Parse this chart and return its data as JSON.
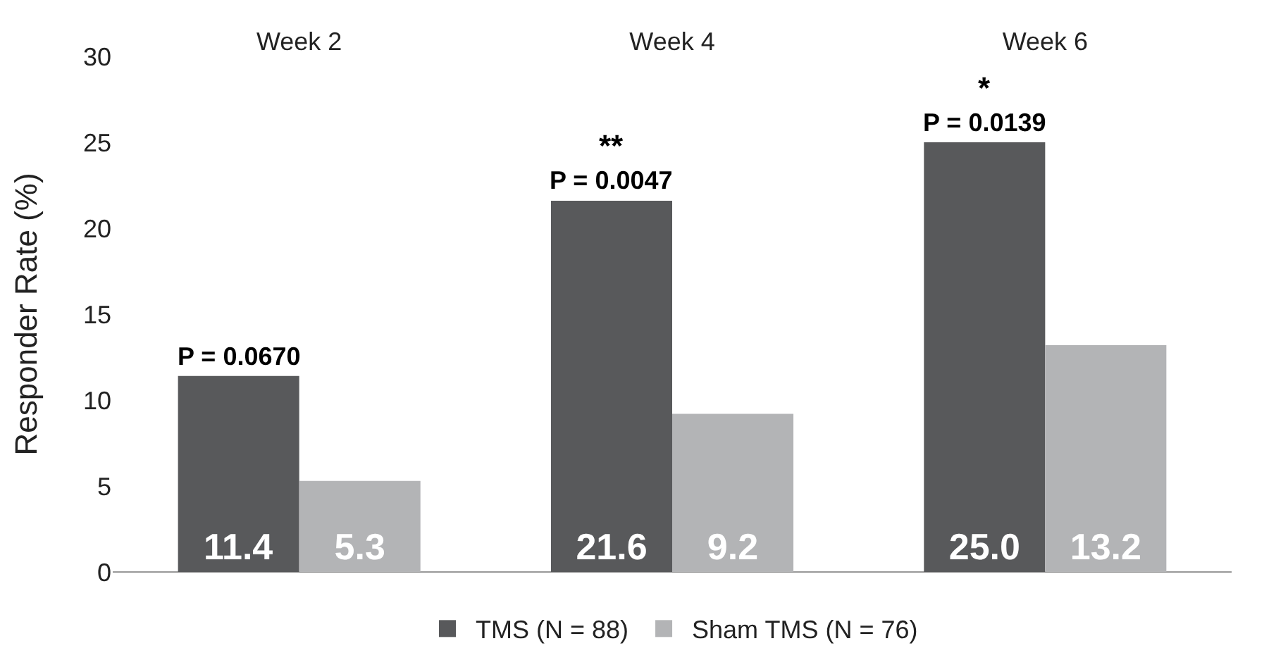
{
  "chart_data": {
    "type": "bar",
    "ylabel": "Responder Rate (%)",
    "categories": [
      "Week 2",
      "Week 4",
      "Week 6"
    ],
    "series": [
      {
        "name": "TMS (N = 88)",
        "color": "#58595b",
        "values": [
          11.4,
          21.6,
          25.0
        ],
        "value_labels": [
          "11.4",
          "21.6",
          "25.0"
        ]
      },
      {
        "name": "Sham TMS (N = 76)",
        "color": "#b3b4b6",
        "values": [
          5.3,
          9.2,
          13.2
        ],
        "value_labels": [
          "5.3",
          "9.2",
          "13.2"
        ]
      }
    ],
    "ylim": [
      0,
      30
    ],
    "yticks": [
      0,
      5,
      10,
      15,
      20,
      25,
      30
    ],
    "grid": false,
    "legend": "bottom",
    "annotations": [
      {
        "text": "P = 0.0670",
        "x": "Week 2",
        "y": 11.4
      },
      {
        "text": "P = 0.0047",
        "x": "Week 4",
        "y": 21.6
      },
      {
        "text": "**",
        "x": "Week 4",
        "y": 21.6
      },
      {
        "text": "P = 0.0139",
        "x": "Week 6",
        "y": 25.0
      },
      {
        "text": "*",
        "x": "Week 6",
        "y": 25.0
      }
    ]
  }
}
